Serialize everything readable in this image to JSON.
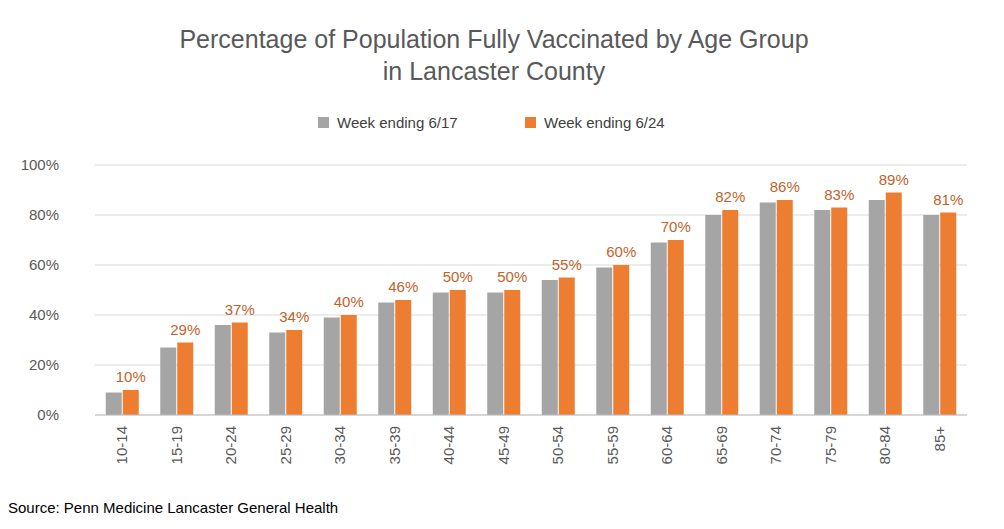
{
  "chart_data": {
    "type": "bar",
    "title": "Percentage of Population Fully Vaccinated by Age Group\nin Lancaster County",
    "source": "Source: Penn Medicine Lancaster General Health",
    "categories": [
      "10-14",
      "15-19",
      "20-24",
      "25-29",
      "30-34",
      "35-39",
      "40-44",
      "45-49",
      "50-54",
      "55-59",
      "60-64",
      "65-69",
      "70-74",
      "75-79",
      "80-84",
      "85+"
    ],
    "series": [
      {
        "name": "Week ending 6/17",
        "color": "#a5a5a5",
        "values": [
          9,
          27,
          36,
          33,
          39,
          45,
          49,
          49,
          54,
          59,
          69,
          80,
          85,
          82,
          86,
          80
        ]
      },
      {
        "name": "Week ending 6/24",
        "color": "#ed7d31",
        "data_labels": true,
        "values": [
          10,
          29,
          37,
          34,
          40,
          46,
          50,
          50,
          55,
          60,
          70,
          82,
          86,
          83,
          89,
          81
        ],
        "value_labels": [
          "10%",
          "29%",
          "37%",
          "34%",
          "40%",
          "46%",
          "50%",
          "50%",
          "55%",
          "60%",
          "70%",
          "82%",
          "86%",
          "83%",
          "89%",
          "81%"
        ]
      }
    ],
    "ylim": [
      0,
      100
    ],
    "yticks": [
      {
        "value": 0,
        "label": "0%"
      },
      {
        "value": 20,
        "label": "20%"
      },
      {
        "value": 40,
        "label": "40%"
      },
      {
        "value": 60,
        "label": "60%"
      },
      {
        "value": 80,
        "label": "80%"
      },
      {
        "value": 100,
        "label": "100%"
      }
    ],
    "grid": true,
    "legend": "top"
  }
}
